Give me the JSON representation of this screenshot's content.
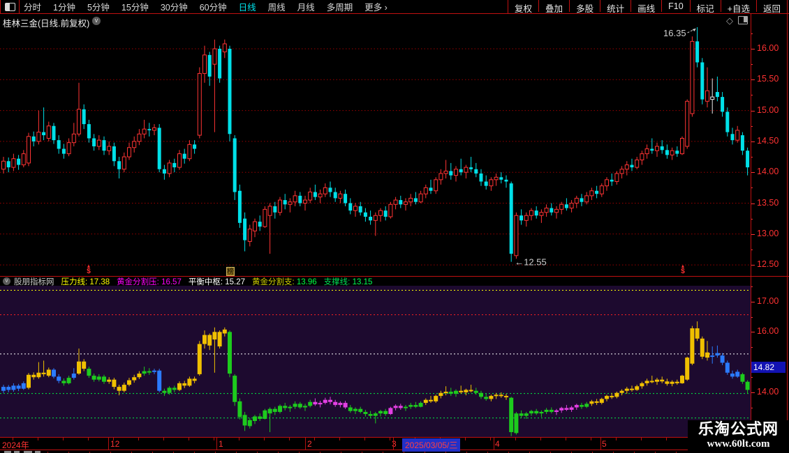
{
  "toolbar": {
    "left_items": [
      "分时",
      "1分钟",
      "5分钟",
      "15分钟",
      "30分钟",
      "60分钟",
      "日线",
      "周线",
      "月线",
      "多周期",
      "更多 ›"
    ],
    "active_item": "日线",
    "right_items": [
      "复权",
      "叠加",
      "多股",
      "统计",
      "画线",
      "F10",
      "标记",
      "+自选",
      "返回"
    ]
  },
  "title": {
    "text": "桂林三金(日线.前复权)"
  },
  "indicator": {
    "name": "股朋指标网",
    "params": [
      {
        "label": "压力线",
        "value": "17.38",
        "label_color": "#ffff00",
        "value_color": "#ffff00"
      },
      {
        "label": "黄金分割压",
        "value": "16.57",
        "label_color": "#ff00ff",
        "value_color": "#ff00ff"
      },
      {
        "label": "平衡中枢",
        "value": "15.27",
        "label_color": "#ffffff",
        "value_color": "#ffffff"
      },
      {
        "label": "黄金分割支",
        "value": "13.96",
        "label_color": "#cfcf00",
        "value_color": "#00ff44"
      },
      {
        "label": "支撑线",
        "value": "13.15",
        "label_color": "#00dd55",
        "value_color": "#00ff55"
      }
    ]
  },
  "bottom": {
    "badge": {
      "value": "14.82",
      "bg": "#1212b2"
    }
  },
  "x_axis": {
    "labels": [
      {
        "text": "2024年",
        "x": 3
      },
      {
        "text": "12",
        "x": 158
      },
      {
        "text": "1",
        "x": 313
      },
      {
        "text": "2",
        "x": 440
      },
      {
        "text": "3",
        "x": 561
      },
      {
        "text": "4",
        "x": 709
      },
      {
        "text": "5",
        "x": 862
      }
    ],
    "month_lines": [
      155,
      310,
      437,
      563,
      707,
      860
    ],
    "date_box": "2025/03/05/三"
  },
  "watermark": {
    "line1": "乐淘公式网",
    "line2": "www.60lt.com"
  },
  "chart_data": [
    {
      "type": "candlestick",
      "panel": "main",
      "title": "桂林三金(日线.前复权)",
      "up_color": "#ff3434",
      "down_color": "#00e0e8",
      "yticks": [
        "16.00",
        "15.50",
        "15.00",
        "14.50",
        "14.00",
        "13.50",
        "13.00",
        "12.50"
      ],
      "ylim": [
        12.3,
        16.38
      ],
      "high_annotation": "16.35",
      "low_annotation": "←12.55",
      "high_index": 138,
      "low_index": 101,
      "white_candles": [
        141
      ],
      "markers": [
        {
          "glyph": "$",
          "kind": "s-marker",
          "x": 121
        },
        {
          "glyph": "榜",
          "kind": "badge",
          "x": 324
        },
        {
          "glyph": "$",
          "kind": "s-marker",
          "x": 972
        }
      ],
      "candles": [
        [
          14.05,
          14.25,
          13.98,
          14.18
        ],
        [
          14.18,
          14.24,
          14.0,
          14.08
        ],
        [
          14.08,
          14.3,
          14.02,
          14.22
        ],
        [
          14.22,
          14.28,
          14.04,
          14.12
        ],
        [
          14.12,
          14.36,
          14.08,
          14.3
        ],
        [
          14.15,
          14.64,
          14.1,
          14.58
        ],
        [
          14.58,
          14.66,
          14.42,
          14.5
        ],
        [
          14.5,
          15.0,
          14.45,
          14.65
        ],
        [
          14.65,
          15.05,
          14.52,
          14.6
        ],
        [
          14.55,
          14.82,
          14.5,
          14.75
        ],
        [
          14.75,
          14.8,
          14.46,
          14.52
        ],
        [
          14.52,
          14.6,
          14.3,
          14.38
        ],
        [
          14.38,
          14.46,
          14.22,
          14.3
        ],
        [
          14.3,
          14.55,
          14.26,
          14.48
        ],
        [
          14.48,
          14.8,
          14.42,
          14.62
        ],
        [
          14.62,
          15.45,
          14.58,
          15.02
        ],
        [
          15.02,
          15.1,
          14.7,
          14.78
        ],
        [
          14.78,
          14.85,
          14.48,
          14.55
        ],
        [
          14.55,
          14.62,
          14.35,
          14.42
        ],
        [
          14.42,
          14.6,
          14.36,
          14.52
        ],
        [
          14.52,
          14.58,
          14.28,
          14.35
        ],
        [
          14.35,
          14.5,
          14.28,
          14.42
        ],
        [
          14.42,
          14.48,
          14.1,
          14.18
        ],
        [
          14.18,
          14.25,
          13.9,
          14.05
        ],
        [
          14.05,
          14.32,
          14.0,
          14.25
        ],
        [
          14.25,
          14.48,
          14.2,
          14.4
        ],
        [
          14.4,
          14.58,
          14.32,
          14.5
        ],
        [
          14.5,
          14.7,
          14.44,
          14.62
        ],
        [
          14.62,
          14.85,
          14.55,
          14.7
        ],
        [
          14.7,
          14.8,
          14.58,
          14.68
        ],
        [
          14.68,
          14.78,
          14.6,
          14.72
        ],
        [
          14.72,
          14.78,
          14.0,
          14.05
        ],
        [
          14.05,
          14.12,
          13.88,
          13.98
        ],
        [
          13.98,
          14.2,
          13.92,
          14.15
        ],
        [
          14.15,
          14.22,
          14.0,
          14.08
        ],
        [
          14.08,
          14.36,
          14.04,
          14.3
        ],
        [
          14.3,
          14.38,
          14.14,
          14.22
        ],
        [
          14.22,
          14.52,
          14.18,
          14.45
        ],
        [
          14.45,
          14.52,
          14.3,
          14.38
        ],
        [
          14.6,
          15.7,
          14.55,
          15.6
        ],
        [
          15.6,
          16.05,
          15.45,
          15.9
        ],
        [
          15.9,
          15.95,
          15.4,
          15.55
        ],
        [
          15.75,
          16.15,
          14.65,
          16.0
        ],
        [
          16.0,
          16.05,
          15.45,
          15.52
        ],
        [
          15.95,
          16.15,
          15.85,
          16.08
        ],
        [
          16.0,
          16.05,
          14.5,
          14.62
        ],
        [
          14.55,
          14.6,
          13.55,
          13.68
        ],
        [
          13.7,
          13.8,
          13.1,
          13.18
        ],
        [
          13.25,
          13.35,
          12.72,
          12.9
        ],
        [
          12.88,
          13.15,
          12.8,
          13.08
        ],
        [
          13.05,
          13.25,
          12.95,
          13.2
        ],
        [
          13.2,
          13.3,
          13.05,
          13.12
        ],
        [
          13.12,
          13.45,
          13.1,
          13.4
        ],
        [
          13.3,
          13.5,
          12.68,
          13.45
        ],
        [
          13.45,
          13.52,
          13.25,
          13.35
        ],
        [
          13.35,
          13.6,
          13.3,
          13.55
        ],
        [
          13.55,
          13.65,
          13.4,
          13.48
        ],
        [
          13.48,
          13.58,
          13.35,
          13.52
        ],
        [
          13.52,
          13.7,
          13.45,
          13.62
        ],
        [
          13.62,
          13.68,
          13.45,
          13.5
        ],
        [
          13.5,
          13.62,
          13.38,
          13.55
        ],
        [
          13.55,
          13.75,
          13.5,
          13.68
        ],
        [
          13.68,
          13.8,
          13.55,
          13.6
        ],
        [
          13.6,
          13.72,
          13.5,
          13.65
        ],
        [
          13.65,
          13.82,
          13.6,
          13.75
        ],
        [
          13.75,
          13.85,
          13.6,
          13.68
        ],
        [
          13.68,
          13.75,
          13.52,
          13.58
        ],
        [
          13.58,
          13.7,
          13.5,
          13.65
        ],
        [
          13.65,
          13.72,
          13.45,
          13.5
        ],
        [
          13.5,
          13.58,
          13.32,
          13.38
        ],
        [
          13.38,
          13.5,
          13.28,
          13.45
        ],
        [
          13.45,
          13.52,
          13.3,
          13.35
        ],
        [
          13.35,
          13.42,
          13.2,
          13.28
        ],
        [
          13.28,
          13.38,
          13.15,
          13.22
        ],
        [
          13.22,
          13.35,
          12.97,
          13.3
        ],
        [
          13.3,
          13.42,
          13.2,
          13.38
        ],
        [
          13.38,
          13.45,
          13.22,
          13.28
        ],
        [
          13.28,
          13.52,
          13.25,
          13.48
        ],
        [
          13.48,
          13.6,
          13.4,
          13.55
        ],
        [
          13.55,
          13.62,
          13.42,
          13.48
        ],
        [
          13.48,
          13.58,
          13.38,
          13.52
        ],
        [
          13.52,
          13.65,
          13.45,
          13.58
        ],
        [
          13.58,
          13.68,
          13.48,
          13.52
        ],
        [
          13.52,
          13.7,
          13.5,
          13.65
        ],
        [
          13.65,
          13.8,
          13.58,
          13.75
        ],
        [
          13.75,
          13.88,
          13.65,
          13.7
        ],
        [
          13.7,
          13.92,
          13.65,
          13.88
        ],
        [
          13.88,
          14.05,
          13.8,
          13.98
        ],
        [
          13.98,
          14.2,
          13.9,
          14.02
        ],
        [
          14.02,
          14.15,
          13.88,
          13.95
        ],
        [
          13.95,
          14.1,
          13.85,
          14.05
        ],
        [
          14.05,
          14.22,
          13.95,
          14.0
        ],
        [
          14.0,
          14.12,
          13.9,
          14.08
        ],
        [
          14.08,
          14.25,
          14.0,
          14.05
        ],
        [
          14.05,
          14.15,
          13.92,
          13.98
        ],
        [
          13.98,
          14.05,
          13.78,
          13.85
        ],
        [
          13.85,
          13.95,
          13.72,
          13.78
        ],
        [
          13.78,
          13.92,
          13.7,
          13.88
        ],
        [
          13.88,
          13.98,
          13.78,
          13.92
        ],
        [
          13.92,
          14.0,
          13.82,
          13.88
        ],
        [
          13.88,
          13.95,
          13.75,
          13.85
        ],
        [
          13.82,
          13.85,
          12.55,
          12.68
        ],
        [
          12.65,
          13.35,
          12.6,
          13.3
        ],
        [
          13.3,
          13.4,
          13.15,
          13.22
        ],
        [
          13.22,
          13.35,
          13.12,
          13.3
        ],
        [
          13.3,
          13.42,
          13.22,
          13.38
        ],
        [
          13.38,
          13.45,
          13.25,
          13.3
        ],
        [
          13.3,
          13.4,
          13.18,
          13.35
        ],
        [
          13.35,
          13.48,
          13.28,
          13.42
        ],
        [
          13.42,
          13.5,
          13.3,
          13.35
        ],
        [
          13.35,
          13.45,
          13.25,
          13.4
        ],
        [
          13.4,
          13.52,
          13.32,
          13.48
        ],
        [
          13.48,
          13.58,
          13.38,
          13.42
        ],
        [
          13.42,
          13.55,
          13.35,
          13.5
        ],
        [
          13.5,
          13.62,
          13.42,
          13.58
        ],
        [
          13.58,
          13.65,
          13.45,
          13.52
        ],
        [
          13.52,
          13.68,
          13.48,
          13.62
        ],
        [
          13.62,
          13.75,
          13.55,
          13.7
        ],
        [
          13.7,
          13.78,
          13.58,
          13.65
        ],
        [
          13.65,
          13.82,
          13.6,
          13.78
        ],
        [
          13.78,
          13.92,
          13.7,
          13.88
        ],
        [
          13.88,
          13.98,
          13.78,
          13.85
        ],
        [
          13.85,
          14.02,
          13.8,
          13.98
        ],
        [
          13.98,
          14.1,
          13.9,
          14.05
        ],
        [
          14.05,
          14.18,
          13.95,
          14.12
        ],
        [
          14.12,
          14.22,
          14.02,
          14.08
        ],
        [
          14.08,
          14.25,
          14.05,
          14.2
        ],
        [
          14.2,
          14.35,
          14.12,
          14.3
        ],
        [
          14.3,
          14.45,
          14.22,
          14.38
        ],
        [
          14.38,
          14.55,
          14.3,
          14.35
        ],
        [
          14.35,
          14.48,
          14.25,
          14.42
        ],
        [
          14.42,
          14.52,
          14.3,
          14.36
        ],
        [
          14.36,
          14.45,
          14.22,
          14.28
        ],
        [
          14.28,
          14.4,
          14.2,
          14.35
        ],
        [
          14.35,
          14.42,
          14.25,
          14.3
        ],
        [
          14.3,
          14.58,
          14.28,
          14.55
        ],
        [
          14.42,
          15.18,
          14.38,
          15.15
        ],
        [
          14.95,
          16.2,
          14.9,
          16.12
        ],
        [
          16.12,
          16.35,
          15.7,
          15.78
        ],
        [
          15.78,
          15.85,
          15.1,
          15.18
        ],
        [
          15.15,
          15.7,
          15.05,
          15.32
        ],
        [
          15.22,
          15.52,
          14.95,
          15.18
        ],
        [
          15.3,
          15.55,
          15.15,
          15.22
        ],
        [
          15.22,
          15.3,
          14.9,
          14.98
        ],
        [
          14.98,
          15.05,
          14.58,
          14.65
        ],
        [
          14.62,
          14.72,
          14.45,
          14.52
        ],
        [
          14.52,
          14.75,
          14.48,
          14.68
        ],
        [
          14.6,
          14.65,
          14.28,
          14.35
        ],
        [
          14.35,
          14.4,
          13.95,
          14.08
        ]
      ]
    },
    {
      "type": "candlestick",
      "panel": "indicator",
      "name": "股朋指标网",
      "shares_candles_of": "main",
      "yticks": [
        "17.00",
        "16.00",
        "14.00"
      ],
      "ylim": [
        12.47,
        17.53
      ],
      "last_value": "14.82",
      "levels": [
        {
          "label": "压力线",
          "value": 17.38,
          "color": "#ffff00"
        },
        {
          "label": "黄金分割压",
          "value": 16.57,
          "color": "#ff2222"
        },
        {
          "label": "平衡中枢",
          "value": 15.27,
          "color": "#ffffff"
        },
        {
          "label": "黄金分割支",
          "value": 13.96,
          "color": "#00ee44"
        },
        {
          "label": "支撑线",
          "value": 13.15,
          "color": "#00ee44"
        }
      ],
      "color_map": {
        "b": "#2b7bff",
        "y": "#f0c000",
        "g": "#1dcb1d",
        "m": "#e33fe3"
      },
      "colors": "bbbbbyyyyybbggbyyggggyyyyyyyggbbgggyyyyyyyyyygggggggggggggggggmmmmmmmggggggggmmmggggyyyyyggyyygggyyyygggggggggmmmmmggyyyyyyyyyyyyyyyyyyyyyyyybbbbbbgg"
    }
  ]
}
